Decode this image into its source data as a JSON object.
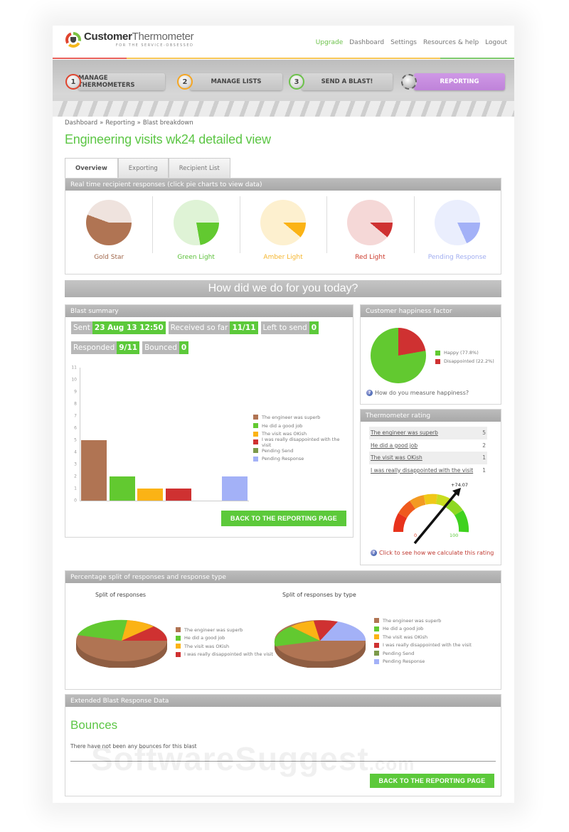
{
  "header": {
    "logo": {
      "bold": "Customer",
      "light": "Thermometer",
      "tagline": "FOR THE SERVICE-OBSESSED"
    },
    "nav": [
      {
        "label": "Upgrade",
        "highlight": true
      },
      {
        "label": "Dashboard"
      },
      {
        "label": "Settings"
      },
      {
        "label": "Resources & help"
      },
      {
        "label": "Logout"
      }
    ]
  },
  "steps": [
    {
      "num": "1",
      "label": "MANAGE THERMOMETERS",
      "ring": "#e0442e"
    },
    {
      "num": "2",
      "label": "MANAGE LISTS",
      "ring": "#f5a623"
    },
    {
      "num": "3",
      "label": "SEND A BLAST!",
      "ring": "#6cc24a"
    },
    {
      "num": "",
      "label": "REPORTING",
      "active": true,
      "color": "#c88fe0"
    }
  ],
  "breadcrumb": [
    "Dashboard",
    "Reporting",
    "Blast breakdown"
  ],
  "breadcrumb_sep": "»",
  "page_title": "Engineering visits wk24 detailed view",
  "tabs": [
    {
      "label": "Overview",
      "active": true
    },
    {
      "label": "Exporting"
    },
    {
      "label": "Recipient List"
    }
  ],
  "realtime": {
    "title": "Real time recipient responses (click pie charts to view data)",
    "pies": [
      {
        "label": "Gold Star",
        "pct": 55.6,
        "color": "#b07453",
        "bg": "#efe3de",
        "text": "#a0664a"
      },
      {
        "label": "Green Light",
        "pct": 22.2,
        "color": "#62c930",
        "bg": "#dff3d6",
        "text": "#5cc03a"
      },
      {
        "label": "Amber Light",
        "pct": 11.1,
        "color": "#fbb315",
        "bg": "#fdf0cf",
        "text": "#f5b52c"
      },
      {
        "label": "Red Light",
        "pct": 11.1,
        "color": "#cf3131",
        "bg": "#f5d8d7",
        "text": "#cc3a2c"
      },
      {
        "label": "Pending Response",
        "pct": 18.2,
        "color": "#a3b1f7",
        "bg": "#eaeefd",
        "text": "#a0adf0"
      }
    ]
  },
  "question": "How did we do for you today?",
  "blast_summary": {
    "title": "Blast summary",
    "chips": [
      [
        {
          "k": "Sent",
          "v": "23 Aug 13 12:50"
        },
        {
          "k": "Received so far",
          "v": "11/11"
        },
        {
          "k": "Left to send",
          "v": "0"
        }
      ],
      [
        {
          "k": "Responded",
          "v": "9/11"
        },
        {
          "k": "Bounced",
          "v": "0"
        }
      ]
    ],
    "back_button": "BACK TO THE REPORTING PAGE"
  },
  "happiness": {
    "title": "Customer happiness factor",
    "legend": [
      {
        "label": "Happy (77.8%)",
        "color": "#62c930"
      },
      {
        "label": "Disappointed (22.2%)",
        "color": "#cf3131"
      }
    ],
    "help": "How do you measure happiness?"
  },
  "thermometer_rating": {
    "title": "Thermometer rating",
    "rows": [
      {
        "label": "The engineer was superb",
        "count": "5"
      },
      {
        "label": "He did a good job",
        "count": "2"
      },
      {
        "label": "The visit was OKish",
        "count": "1"
      },
      {
        "label": "I was really disappointed with the visit",
        "count": "1"
      }
    ],
    "gauge": {
      "value": "+74.07",
      "min": "0",
      "max": "100"
    },
    "help": "Click to see how we calculate this rating"
  },
  "split": {
    "title": "Percentage split of responses and response type",
    "left_title": "Split of responses",
    "right_title": "Split of responses by type",
    "left_legend": [
      {
        "label": "The engineer was superb",
        "color": "#b07453"
      },
      {
        "label": "He did a good job",
        "color": "#62c930"
      },
      {
        "label": "The visit was OKish",
        "color": "#fbb315"
      },
      {
        "label": "I was really disappointed with the visit",
        "color": "#cf3131"
      }
    ],
    "right_legend": [
      {
        "label": "The engineer was superb",
        "color": "#b07453"
      },
      {
        "label": "He did a good job",
        "color": "#62c930"
      },
      {
        "label": "The visit was OKish",
        "color": "#fbb315"
      },
      {
        "label": "I was really disappointed with the visit",
        "color": "#cf3131"
      },
      {
        "label": "Pending Send",
        "color": "#7c9a4a"
      },
      {
        "label": "Pending Response",
        "color": "#a3b1f7"
      }
    ]
  },
  "extended": {
    "title": "Extended Blast Response Data",
    "bounces_title": "Bounces",
    "bounces_text": "There have not been any bounces for this blast",
    "back_button": "BACK TO THE REPORTING PAGE"
  },
  "watermark": {
    "main": "SoftwareSuggest",
    "suffix": ".com"
  },
  "chart_data": [
    {
      "type": "bar",
      "title": "Blast summary",
      "categories": [
        "The engineer was superb",
        "He did a good job",
        "The visit was OKish",
        "I was really disappointed with the visit",
        "Pending Send",
        "Pending Response"
      ],
      "values": [
        5,
        2,
        1,
        1,
        0,
        2
      ],
      "colors": [
        "#b07453",
        "#62c930",
        "#fbb315",
        "#cf3131",
        "#7c9a4a",
        "#a3b1f7"
      ],
      "ylim": [
        0,
        11
      ],
      "yticks": [
        0,
        1,
        2,
        3,
        4,
        5,
        6,
        7,
        8,
        9,
        10,
        11
      ],
      "legend_position": "right"
    },
    {
      "type": "pie",
      "title": "Customer happiness factor",
      "categories": [
        "Happy",
        "Disappointed"
      ],
      "values": [
        77.8,
        22.2
      ]
    },
    {
      "type": "pie",
      "title": "Split of responses",
      "categories": [
        "The engineer was superb",
        "He did a good job",
        "The visit was OKish",
        "I was really disappointed with the visit"
      ],
      "values": [
        5,
        2,
        1,
        1
      ]
    },
    {
      "type": "pie",
      "title": "Split of responses by type",
      "categories": [
        "The engineer was superb",
        "He did a good job",
        "The visit was OKish",
        "I was really disappointed with the visit",
        "Pending Send",
        "Pending Response"
      ],
      "values": [
        5,
        2,
        1,
        1,
        0,
        2
      ]
    }
  ]
}
